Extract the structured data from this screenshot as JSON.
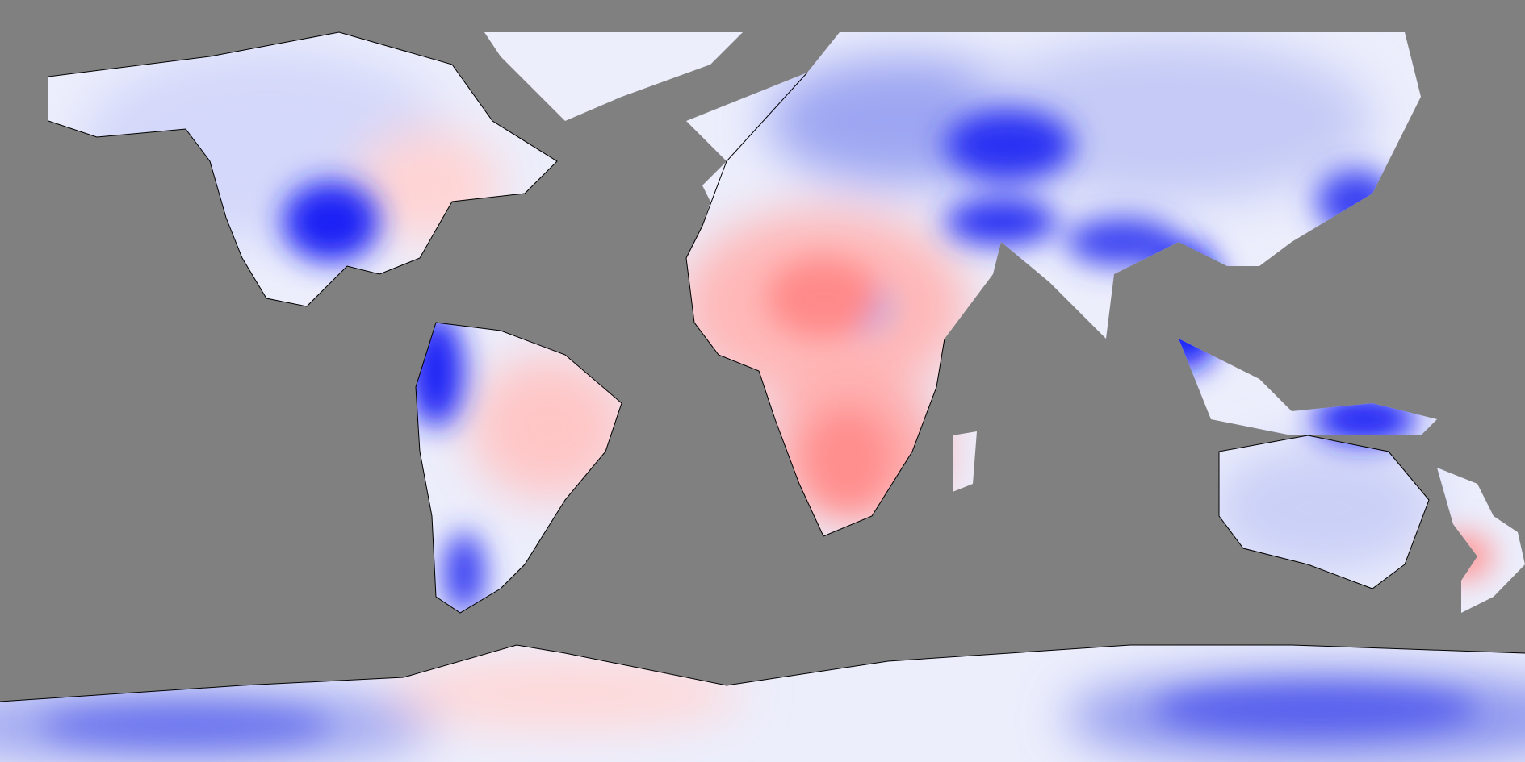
{
  "map": {
    "projection": "equirectangular",
    "ocean_color": "#808080",
    "coastline_color": "#000000",
    "palette": {
      "strong_negative": "#0000FF",
      "negative": "#5A6BF0",
      "weak_negative": "#C8CCF8",
      "neutral": "#FFFFFF",
      "weak_positive": "#FFD0D0",
      "positive": "#FF8888"
    }
  }
}
